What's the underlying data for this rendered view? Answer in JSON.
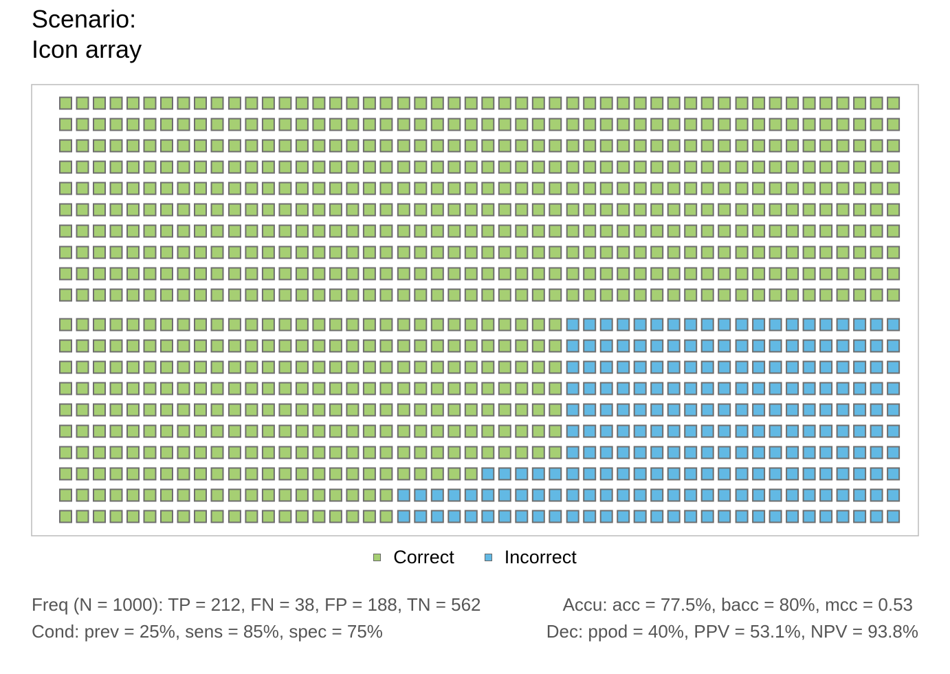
{
  "title_line1": "Scenario:",
  "title_line2": "Icon array",
  "chart_data": {
    "type": "icon-array",
    "total": 1000,
    "rows": 20,
    "cols": 50,
    "categories": [
      {
        "name": "Correct",
        "count": 775,
        "color": "#a6cf73"
      },
      {
        "name": "Incorrect",
        "count": 225,
        "color": "#62b9e4"
      }
    ],
    "icon_stroke": "#6e6e6e",
    "frame_stroke": "#bbbbbb",
    "legend_position": "bottom"
  },
  "legend": {
    "correct_label": "Correct",
    "incorrect_label": "Incorrect"
  },
  "footer": {
    "freq": "Freq (N = 1000):  TP = 212, FN = 38, FP = 188, TN = 562",
    "accu": "Accu:  acc = 77.5%, bacc = 80%, mcc = 0.53",
    "cond": "Cond:  prev = 25%, sens = 85%, spec = 75%",
    "dec": "Dec:  ppod = 40%, PPV = 53.1%, NPV = 93.8%"
  }
}
